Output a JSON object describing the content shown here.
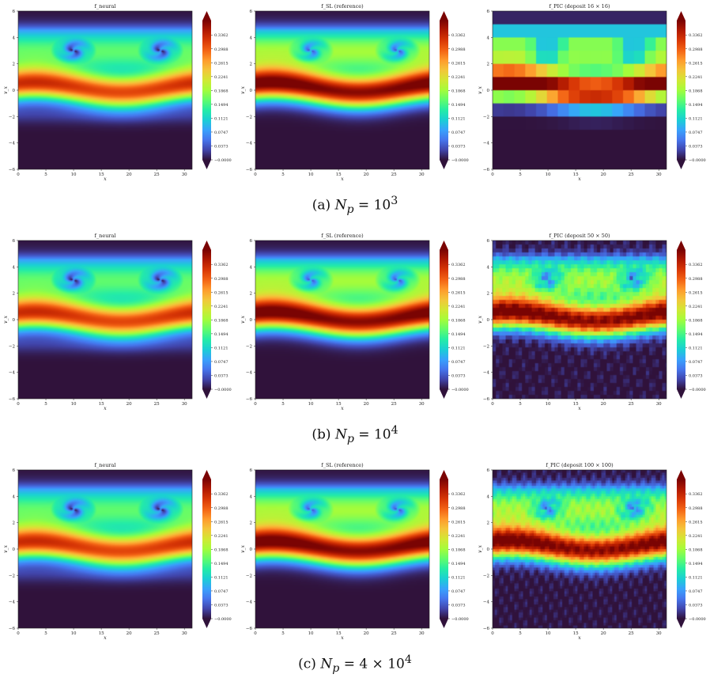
{
  "colormap": [
    "#30123b",
    "#4145ab",
    "#4675ed",
    "#39a2fc",
    "#1bcfd4",
    "#24eca6",
    "#61fc6c",
    "#a4fc3b",
    "#d1e834",
    "#f3c63a",
    "#fe9b2d",
    "#f36315",
    "#d93806",
    "#b11901",
    "#7a0403"
  ],
  "chart_data": [
    {
      "row": 0,
      "type": "heatmap",
      "title": "f_neural",
      "xlabel": "x",
      "ylabel": "v_x",
      "xlim": [
        0,
        31.4
      ],
      "ylim": [
        -6,
        6
      ],
      "xticks": [
        "0",
        "5",
        "10",
        "15",
        "20",
        "25",
        "30"
      ],
      "yticks": [
        "−6",
        "−4",
        "−2",
        "0",
        "2",
        "4",
        "6"
      ],
      "colorbar": [
        "−0.0000",
        "0.0373",
        "0.0747",
        "0.1121",
        "0.1494",
        "0.1868",
        "0.2241",
        "0.2615",
        "0.2988",
        "0.3362"
      ]
    },
    {
      "row": 0,
      "type": "heatmap",
      "title": "f_SL (reference)",
      "xlabel": "x",
      "ylabel": "v_x",
      "xlim": [
        0,
        31.4
      ],
      "ylim": [
        -6,
        6
      ],
      "xticks": [
        "0",
        "5",
        "10",
        "15",
        "20",
        "25",
        "30"
      ],
      "yticks": [
        "−6",
        "−4",
        "−2",
        "0",
        "2",
        "4",
        "6"
      ],
      "colorbar": [
        "−0.0000",
        "0.0373",
        "0.0747",
        "0.1121",
        "0.1494",
        "0.1868",
        "0.2241",
        "0.2615",
        "0.2988",
        "0.3362"
      ]
    },
    {
      "row": 0,
      "type": "heatmap",
      "title": "f_PIC (deposit 16 × 16)",
      "xlabel": "x",
      "ylabel": "v_x",
      "xlim": [
        0,
        31.4
      ],
      "ylim": [
        -6,
        6
      ],
      "xticks": [
        "0",
        "5",
        "10",
        "15",
        "20",
        "25",
        "30"
      ],
      "yticks": [
        "−6",
        "−4",
        "−2",
        "0",
        "2",
        "4",
        "6"
      ],
      "colorbar": [
        "−0.0000",
        "0.0373",
        "0.0747",
        "0.1121",
        "0.1494",
        "0.1868",
        "0.2241",
        "0.2615",
        "0.2988",
        "0.3362"
      ]
    },
    {
      "row": 1,
      "type": "heatmap",
      "title": "f_neural",
      "xlabel": "x",
      "ylabel": "v_x",
      "xlim": [
        0,
        31.4
      ],
      "ylim": [
        -6,
        6
      ],
      "xticks": [
        "0",
        "5",
        "10",
        "15",
        "20",
        "25",
        "30"
      ],
      "yticks": [
        "−6",
        "−4",
        "−2",
        "0",
        "2",
        "4",
        "6"
      ],
      "colorbar": [
        "−0.0000",
        "0.0373",
        "0.0747",
        "0.1121",
        "0.1494",
        "0.1868",
        "0.2241",
        "0.2615",
        "0.2988",
        "0.3362"
      ]
    },
    {
      "row": 1,
      "type": "heatmap",
      "title": "f_SL (reference)",
      "xlabel": "x",
      "ylabel": "v_x",
      "xlim": [
        0,
        31.4
      ],
      "ylim": [
        -6,
        6
      ],
      "xticks": [
        "0",
        "5",
        "10",
        "15",
        "20",
        "25",
        "30"
      ],
      "yticks": [
        "−6",
        "−4",
        "−2",
        "0",
        "2",
        "4",
        "6"
      ],
      "colorbar": [
        "−0.0000",
        "0.0373",
        "0.0747",
        "0.1121",
        "0.1494",
        "0.1868",
        "0.2241",
        "0.2615",
        "0.2988",
        "0.3362"
      ]
    },
    {
      "row": 1,
      "type": "heatmap",
      "title": "f_PIC (deposit 50 × 50)",
      "xlabel": "x",
      "ylabel": "v_x",
      "xlim": [
        0,
        31.4
      ],
      "ylim": [
        -6,
        6
      ],
      "xticks": [
        "0",
        "5",
        "10",
        "15",
        "20",
        "25",
        "30"
      ],
      "yticks": [
        "−6",
        "−4",
        "−2",
        "0",
        "2",
        "4",
        "6"
      ],
      "colorbar": [
        "−0.0000",
        "0.0373",
        "0.0747",
        "0.1121",
        "0.1494",
        "0.1868",
        "0.2241",
        "0.2615",
        "0.2988",
        "0.3362"
      ]
    },
    {
      "row": 2,
      "type": "heatmap",
      "title": "f_neural",
      "xlabel": "x",
      "ylabel": "v_x",
      "xlim": [
        0,
        31.4
      ],
      "ylim": [
        -6,
        6
      ],
      "xticks": [
        "0",
        "5",
        "10",
        "15",
        "20",
        "25",
        "30"
      ],
      "yticks": [
        "−6",
        "−4",
        "−2",
        "0",
        "2",
        "4",
        "6"
      ],
      "colorbar": [
        "−0.0000",
        "0.0373",
        "0.0747",
        "0.1121",
        "0.1494",
        "0.1868",
        "0.2241",
        "0.2615",
        "0.2988",
        "0.3362"
      ]
    },
    {
      "row": 2,
      "type": "heatmap",
      "title": "f_SL (reference)",
      "xlabel": "x",
      "ylabel": "v_x",
      "xlim": [
        0,
        31.4
      ],
      "ylim": [
        -6,
        6
      ],
      "xticks": [
        "0",
        "5",
        "10",
        "15",
        "20",
        "25",
        "30"
      ],
      "yticks": [
        "−6",
        "−4",
        "−2",
        "0",
        "2",
        "4",
        "6"
      ],
      "colorbar": [
        "−0.0000",
        "0.0373",
        "0.0747",
        "0.1121",
        "0.1494",
        "0.1868",
        "0.2241",
        "0.2615",
        "0.2988",
        "0.3362"
      ]
    },
    {
      "row": 2,
      "type": "heatmap",
      "title": "f_PIC (deposit 100 × 100)",
      "xlabel": "x",
      "ylabel": "v_x",
      "xlim": [
        0,
        31.4
      ],
      "ylim": [
        -6,
        6
      ],
      "xticks": [
        "0",
        "5",
        "10",
        "15",
        "20",
        "25",
        "30"
      ],
      "yticks": [
        "−6",
        "−4",
        "−2",
        "0",
        "2",
        "4",
        "6"
      ],
      "colorbar": [
        "−0.0000",
        "0.0373",
        "0.0747",
        "0.1121",
        "0.1494",
        "0.1868",
        "0.2241",
        "0.2615",
        "0.2988",
        "0.3362"
      ]
    }
  ],
  "captions": [
    {
      "label": "(a)",
      "var": "N",
      "sub": "p",
      "rhs": "= 10",
      "sup": "3",
      "pre": ""
    },
    {
      "label": "(b)",
      "var": "N",
      "sub": "p",
      "rhs": "= 10",
      "sup": "4",
      "pre": ""
    },
    {
      "label": "(c)",
      "var": "N",
      "sub": "p",
      "rhs": "= 4 × 10",
      "sup": "4",
      "pre": ""
    }
  ]
}
